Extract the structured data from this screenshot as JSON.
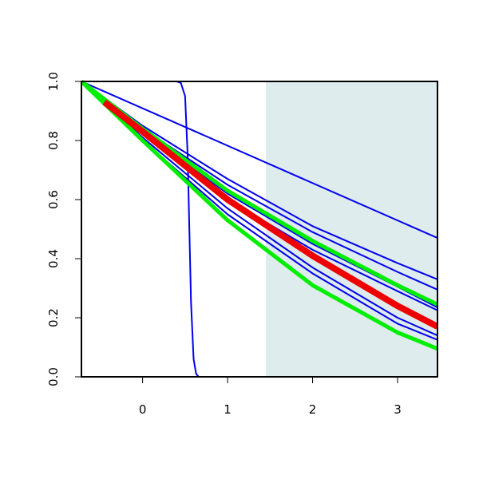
{
  "chart_data": {
    "type": "line",
    "title": "",
    "xlabel": "",
    "ylabel": "",
    "xlim": [
      -0.72,
      3.47
    ],
    "ylim": [
      0.0,
      1.0
    ],
    "grid": false,
    "legend": "none",
    "shaded_region": {
      "x_from": 1.45,
      "x_to": 3.47,
      "color": "#dfeced"
    },
    "x_ticks": [
      {
        "value": 0,
        "label": "0"
      },
      {
        "value": 1,
        "label": "1"
      },
      {
        "value": 2,
        "label": "2"
      },
      {
        "value": 3,
        "label": "3"
      }
    ],
    "y_ticks": [
      {
        "value": 0.0,
        "label": "0.0"
      },
      {
        "value": 0.2,
        "label": "0.2"
      },
      {
        "value": 0.4,
        "label": "0.4"
      },
      {
        "value": 0.6,
        "label": "0.6"
      },
      {
        "value": 0.8,
        "label": "0.8"
      },
      {
        "value": 1.0,
        "label": "1.0"
      }
    ],
    "series": [
      {
        "color": "#0000ee",
        "width": 2,
        "x": [
          -0.72,
          0.4,
          0.45,
          0.5,
          0.53,
          0.55,
          0.57,
          0.6,
          0.63,
          0.66,
          3.47
        ],
        "y": [
          1.0,
          1.0,
          0.995,
          0.95,
          0.75,
          0.5,
          0.25,
          0.06,
          0.01,
          0.0,
          0.0
        ]
      },
      {
        "color": "#0000ee",
        "width": 2,
        "x": [
          -0.72,
          3.47
        ],
        "y": [
          1.0,
          0.47
        ]
      },
      {
        "color": "#0000ee",
        "width": 2,
        "x": [
          -0.72,
          0.0,
          1.0,
          2.0,
          3.0,
          3.47
        ],
        "y": [
          1.0,
          0.85,
          0.67,
          0.51,
          0.385,
          0.33
        ]
      },
      {
        "color": "#0000ee",
        "width": 2,
        "x": [
          -0.72,
          0.0,
          1.0,
          2.0,
          3.0,
          3.47
        ],
        "y": [
          1.0,
          0.84,
          0.65,
          0.49,
          0.355,
          0.295
        ]
      },
      {
        "color": "#0000ee",
        "width": 2,
        "x": [
          -0.72,
          0.0,
          1.0,
          2.0,
          3.0,
          3.47
        ],
        "y": [
          1.0,
          0.83,
          0.62,
          0.45,
          0.305,
          0.235
        ]
      },
      {
        "color": "#0000ee",
        "width": 2,
        "x": [
          -0.72,
          0.0,
          1.0,
          2.0,
          3.0,
          3.47
        ],
        "y": [
          1.0,
          0.82,
          0.6,
          0.43,
          0.29,
          0.225
        ]
      },
      {
        "color": "#0000ee",
        "width": 2,
        "x": [
          -0.72,
          0.0,
          1.0,
          2.0,
          3.0,
          3.47
        ],
        "y": [
          1.0,
          0.81,
          0.57,
          0.37,
          0.2,
          0.14
        ]
      },
      {
        "color": "#0000ee",
        "width": 2,
        "x": [
          -0.72,
          0.0,
          1.0,
          2.0,
          3.0,
          3.47
        ],
        "y": [
          1.0,
          0.8,
          0.55,
          0.35,
          0.18,
          0.125
        ]
      },
      {
        "color": "#00ee00",
        "width": 5,
        "x": [
          -0.72,
          0.0,
          1.0,
          2.0,
          3.0,
          3.47
        ],
        "y": [
          1.0,
          0.84,
          0.63,
          0.46,
          0.31,
          0.245
        ]
      },
      {
        "color": "#00ee00",
        "width": 5,
        "x": [
          -0.72,
          0.0,
          1.0,
          2.0,
          3.0,
          3.47
        ],
        "y": [
          1.0,
          0.8,
          0.53,
          0.31,
          0.15,
          0.095
        ]
      },
      {
        "color": "#ee0000",
        "width": 8,
        "x": [
          -0.45,
          0.0,
          1.0,
          2.0,
          3.0,
          3.47
        ],
        "y": [
          0.93,
          0.83,
          0.6,
          0.41,
          0.24,
          0.17
        ]
      }
    ]
  }
}
